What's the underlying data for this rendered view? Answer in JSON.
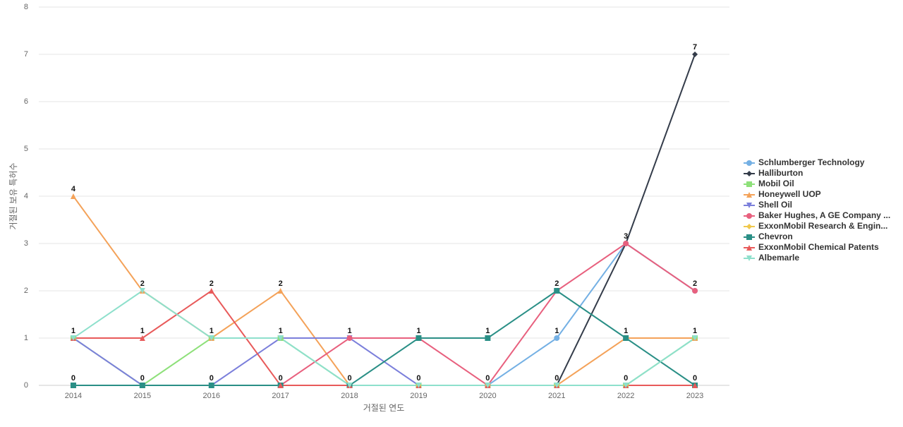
{
  "chart_data": {
    "type": "line",
    "x_label": "거절된 연도",
    "y_label": "거절된 보유 특허수",
    "categories": [
      "2014",
      "2015",
      "2016",
      "2017",
      "2018",
      "2019",
      "2020",
      "2021",
      "2022",
      "2023"
    ],
    "ylim": [
      0,
      8
    ],
    "yticks": [
      0,
      1,
      2,
      3,
      4,
      5,
      6,
      7,
      8
    ],
    "grid": true,
    "legend": "right",
    "series": [
      {
        "name": "Schlumberger Technology",
        "color": "#74b0e4",
        "marker": "circle",
        "values": [
          0,
          0,
          0,
          0,
          0,
          0,
          0,
          1,
          3,
          2
        ]
      },
      {
        "name": "Halliburton",
        "color": "#343c4a",
        "marker": "diamond",
        "values": [
          0,
          0,
          0,
          0,
          0,
          0,
          0,
          0,
          3,
          7
        ]
      },
      {
        "name": "Mobil Oil",
        "color": "#8ee07a",
        "marker": "square",
        "values": [
          1,
          0,
          1,
          1,
          0,
          0,
          0,
          0,
          0,
          1
        ]
      },
      {
        "name": "Honeywell UOP",
        "color": "#f4a259",
        "marker": "triangle",
        "values": [
          4,
          2,
          1,
          2,
          0,
          0,
          0,
          0,
          1,
          1
        ]
      },
      {
        "name": "Shell Oil",
        "color": "#7b7fdb",
        "marker": "triangle-down",
        "values": [
          1,
          0,
          0,
          1,
          1,
          0,
          0,
          0,
          0,
          0
        ]
      },
      {
        "name": "Baker Hughes, A GE Company ...",
        "color": "#e8607e",
        "marker": "circle",
        "values": [
          0,
          0,
          0,
          0,
          1,
          1,
          0,
          2,
          3,
          2
        ]
      },
      {
        "name": "ExxonMobil Research & Engin...",
        "color": "#f0c84c",
        "marker": "diamond",
        "values": [
          0,
          0,
          0,
          0,
          0,
          0,
          0,
          0,
          0,
          0
        ]
      },
      {
        "name": "Chevron",
        "color": "#2a8f86",
        "marker": "square",
        "values": [
          0,
          0,
          0,
          0,
          0,
          1,
          1,
          2,
          1,
          0
        ]
      },
      {
        "name": "ExxonMobil Chemical Patents",
        "color": "#e85a5a",
        "marker": "triangle",
        "values": [
          1,
          1,
          2,
          0,
          0,
          0,
          0,
          0,
          0,
          0
        ]
      },
      {
        "name": "Albemarle",
        "color": "#8ee0cc",
        "marker": "triangle-down",
        "values": [
          1,
          2,
          1,
          1,
          0,
          0,
          0,
          0,
          0,
          1
        ]
      }
    ]
  }
}
